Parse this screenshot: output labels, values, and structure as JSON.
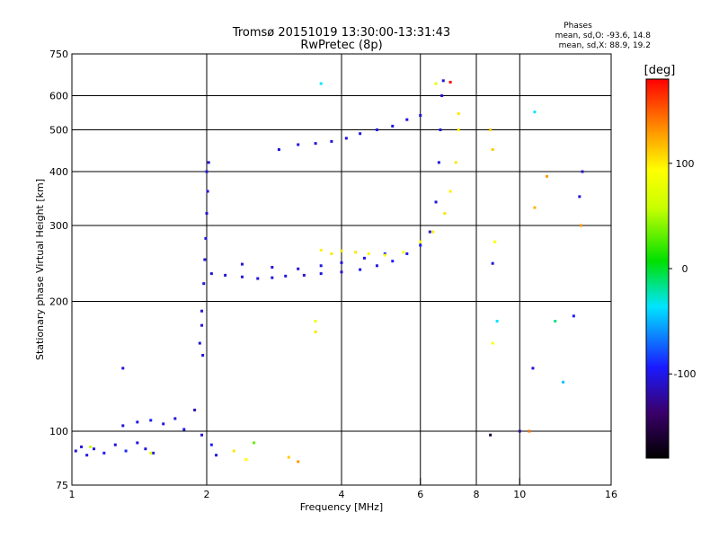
{
  "header": {
    "title_line1": "Tromsø 20151019 13:30:00-13:31:43",
    "title_line2": "RwPretec (8p)",
    "stats_heading": "Phases",
    "stats_line_o": "mean, sd,O: -93.6, 14.8",
    "stats_line_x": "mean, sd,X:  88.9, 19.2"
  },
  "colorbar": {
    "label": "[deg]",
    "ticks": [
      {
        "value": 100,
        "label": "100"
      },
      {
        "value": 0,
        "label": "0"
      },
      {
        "value": -100,
        "label": "-100"
      }
    ],
    "range": [
      -180,
      180
    ]
  },
  "chart_data": {
    "type": "scatter",
    "title": "Tromsø 20151019 13:30:00-13:31:43",
    "subtitle": "RwPretec (8p)",
    "xlabel": "Frequency [MHz]",
    "ylabel": "Stationary phase Virtual Height [km]",
    "x_scale": "log",
    "y_scale": "log",
    "xlim": [
      1,
      16
    ],
    "ylim": [
      75,
      750
    ],
    "x_ticks": [
      {
        "value": 1,
        "label": "1"
      },
      {
        "value": 2,
        "label": "2"
      },
      {
        "value": 4,
        "label": "4"
      },
      {
        "value": 6,
        "label": "6"
      },
      {
        "value": 8,
        "label": "8"
      },
      {
        "value": 10,
        "label": "10"
      },
      {
        "value": 16,
        "label": "16"
      }
    ],
    "y_ticks": [
      {
        "value": 75,
        "label": "75"
      },
      {
        "value": 100,
        "label": "100"
      },
      {
        "value": 200,
        "label": "200"
      },
      {
        "value": 300,
        "label": "300"
      },
      {
        "value": 400,
        "label": "400"
      },
      {
        "value": 500,
        "label": "500"
      },
      {
        "value": 600,
        "label": "600"
      },
      {
        "value": 750,
        "label": "750"
      }
    ],
    "x_grid": [
      2,
      4,
      6,
      8,
      10
    ],
    "y_grid": [
      100,
      200,
      300,
      400,
      500,
      600
    ],
    "color_value": "phase [deg]",
    "points": [
      [
        1.02,
        90,
        -110
      ],
      [
        1.05,
        92,
        -110
      ],
      [
        1.08,
        88,
        -105
      ],
      [
        1.12,
        91,
        -110
      ],
      [
        1.18,
        89,
        -100
      ],
      [
        1.25,
        93,
        -110
      ],
      [
        1.32,
        90,
        -95
      ],
      [
        1.4,
        94,
        -110
      ],
      [
        1.46,
        91,
        -110
      ],
      [
        1.52,
        89,
        -105
      ],
      [
        1.3,
        103,
        -110
      ],
      [
        1.4,
        105,
        -110
      ],
      [
        1.5,
        106,
        -100
      ],
      [
        1.6,
        104,
        -110
      ],
      [
        1.7,
        107,
        -110
      ],
      [
        1.78,
        101,
        -105
      ],
      [
        1.88,
        112,
        -120
      ],
      [
        1.95,
        98,
        -110
      ],
      [
        2.05,
        93,
        -100
      ],
      [
        2.1,
        88,
        -110
      ],
      [
        1.1,
        92,
        60
      ],
      [
        2.3,
        90,
        110
      ],
      [
        2.45,
        86,
        100
      ],
      [
        2.55,
        94,
        30
      ],
      [
        3.05,
        87,
        120
      ],
      [
        3.2,
        85,
        140
      ],
      [
        1.5,
        89,
        80
      ],
      [
        1.95,
        176,
        -110
      ],
      [
        1.93,
        160,
        -110
      ],
      [
        1.95,
        190,
        -110
      ],
      [
        1.97,
        220,
        -110
      ],
      [
        1.98,
        250,
        -110
      ],
      [
        1.99,
        280,
        -110
      ],
      [
        2.0,
        320,
        -110
      ],
      [
        2.01,
        360,
        -110
      ],
      [
        2.0,
        400,
        -110
      ],
      [
        2.02,
        420,
        -110
      ],
      [
        1.96,
        150,
        -110
      ],
      [
        2.05,
        232,
        -110
      ],
      [
        2.2,
        230,
        -110
      ],
      [
        2.4,
        228,
        -110
      ],
      [
        2.6,
        226,
        -110
      ],
      [
        2.8,
        227,
        -110
      ],
      [
        3.0,
        229,
        -110
      ],
      [
        3.3,
        230,
        -110
      ],
      [
        3.6,
        232,
        -110
      ],
      [
        4.0,
        234,
        -110
      ],
      [
        4.4,
        237,
        -105
      ],
      [
        4.8,
        242,
        -105
      ],
      [
        5.2,
        248,
        -100
      ],
      [
        5.6,
        258,
        -100
      ],
      [
        6.0,
        270,
        -100
      ],
      [
        6.3,
        290,
        -110
      ],
      [
        6.5,
        340,
        -110
      ],
      [
        6.6,
        420,
        -110
      ],
      [
        6.65,
        500,
        -110
      ],
      [
        6.7,
        600,
        -110
      ],
      [
        6.75,
        650,
        -110
      ],
      [
        2.4,
        244,
        -110
      ],
      [
        2.8,
        240,
        -110
      ],
      [
        3.2,
        238,
        -110
      ],
      [
        3.6,
        242,
        -110
      ],
      [
        4.0,
        246,
        -110
      ],
      [
        4.5,
        252,
        -105
      ],
      [
        5.0,
        258,
        -95
      ],
      [
        3.6,
        263,
        105
      ],
      [
        3.8,
        258,
        110
      ],
      [
        4.0,
        262,
        110
      ],
      [
        4.3,
        260,
        110
      ],
      [
        4.6,
        258,
        105
      ],
      [
        5.0,
        256,
        100
      ],
      [
        5.5,
        260,
        100
      ],
      [
        6.0,
        275,
        100
      ],
      [
        6.4,
        290,
        110
      ],
      [
        6.8,
        320,
        110
      ],
      [
        7.0,
        360,
        105
      ],
      [
        7.2,
        420,
        110
      ],
      [
        7.3,
        500,
        105
      ],
      [
        7.3,
        545,
        110
      ],
      [
        2.9,
        450,
        -110
      ],
      [
        3.2,
        462,
        -110
      ],
      [
        3.5,
        465,
        -110
      ],
      [
        3.8,
        470,
        -110
      ],
      [
        4.1,
        478,
        -110
      ],
      [
        4.4,
        490,
        -110
      ],
      [
        4.8,
        500,
        -105
      ],
      [
        5.2,
        510,
        -110
      ],
      [
        5.6,
        528,
        -110
      ],
      [
        6.0,
        540,
        -110
      ],
      [
        3.6,
        640,
        -40
      ],
      [
        6.5,
        640,
        80
      ],
      [
        7.0,
        645,
        180
      ],
      [
        8.6,
        500,
        120
      ],
      [
        8.7,
        450,
        120
      ],
      [
        8.8,
        275,
        100
      ],
      [
        8.7,
        245,
        -110
      ],
      [
        8.9,
        180,
        -40
      ],
      [
        8.7,
        160,
        100
      ],
      [
        8.6,
        98,
        -160
      ],
      [
        10.0,
        100,
        -130
      ],
      [
        10.5,
        100,
        150
      ],
      [
        10.8,
        550,
        -40
      ],
      [
        11.5,
        390,
        140
      ],
      [
        12.0,
        180,
        -20
      ],
      [
        12.5,
        130,
        -50
      ],
      [
        13.2,
        185,
        -100
      ],
      [
        13.6,
        350,
        -110
      ],
      [
        13.8,
        400,
        -110
      ],
      [
        13.7,
        300,
        140
      ],
      [
        10.8,
        330,
        130
      ],
      [
        10.7,
        140,
        -110
      ],
      [
        1.3,
        140,
        -110
      ],
      [
        3.5,
        180,
        90
      ],
      [
        3.5,
        170,
        110
      ]
    ]
  }
}
